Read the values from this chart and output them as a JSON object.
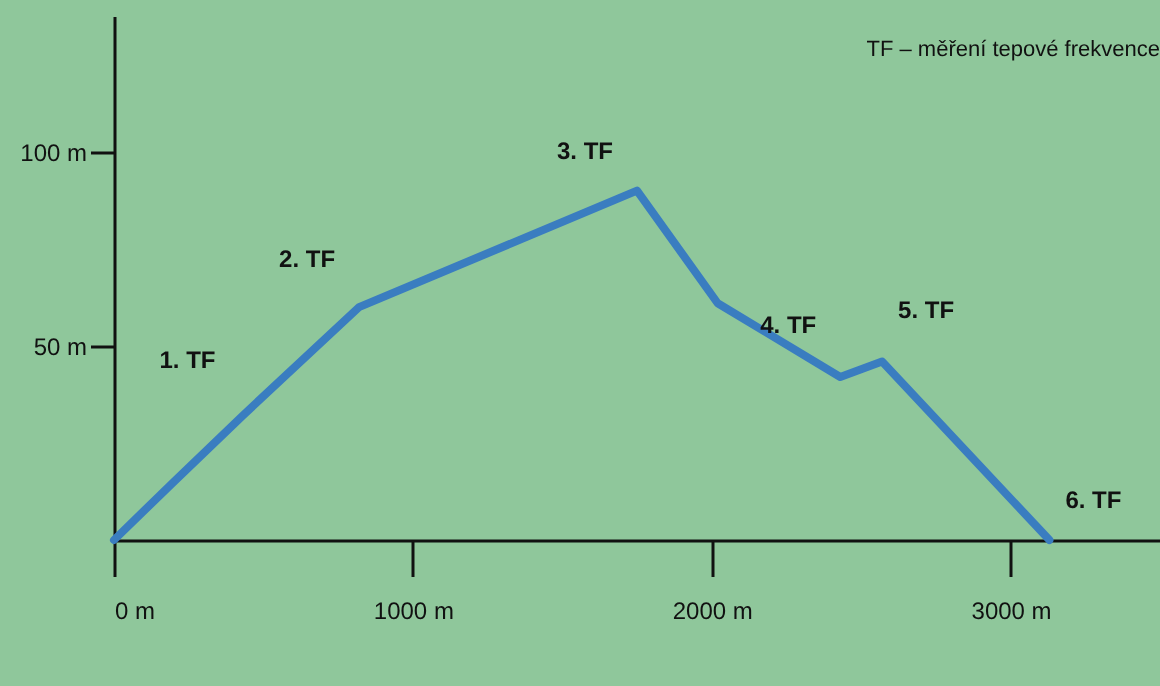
{
  "chart_data": {
    "type": "line",
    "title": "TF – měření tepové frekvence",
    "x": [
      0,
      200,
      430,
      820,
      1750,
      2020,
      2430,
      2570,
      3130
    ],
    "series": [
      {
        "color": "#3a7dc0",
        "values": [
          0,
          15,
          32,
          60,
          90,
          61,
          42,
          46,
          0
        ]
      }
    ],
    "xlim": [
      0,
      3500
    ],
    "ylim": [
      0,
      135
    ],
    "xticks": [
      {
        "value": 0,
        "label": "0 m"
      },
      {
        "value": 1000,
        "label": "1000 m"
      },
      {
        "value": 2000,
        "label": "2000 m"
      },
      {
        "value": 3000,
        "label": "3000 m"
      }
    ],
    "yticks": [
      {
        "value": 50,
        "label": "50 m"
      },
      {
        "value": 100,
        "label": "100 m"
      }
    ],
    "grid": false,
    "marker": "none",
    "line_style": "solid",
    "annotations": [
      {
        "text": "1. TF",
        "x": 420,
        "y": 36
      },
      {
        "text": "2. TF",
        "x": 820,
        "y": 62
      },
      {
        "text": "3. TF",
        "x": 1750,
        "y": 90
      },
      {
        "text": "4. TF",
        "x": 2430,
        "y": 45
      },
      {
        "text": "5. TF",
        "x": 2570,
        "y": 49
      },
      {
        "text": "6. TF",
        "x": 3130,
        "y": 0
      }
    ]
  }
}
